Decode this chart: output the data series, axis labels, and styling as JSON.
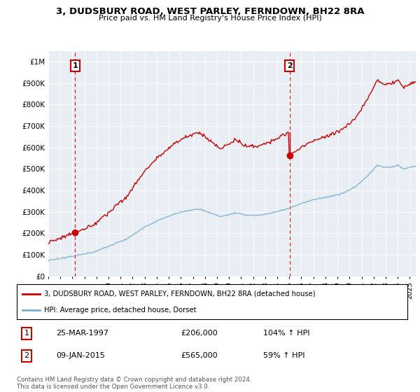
{
  "title": "3, DUDSBURY ROAD, WEST PARLEY, FERNDOWN, BH22 8RA",
  "subtitle": "Price paid vs. HM Land Registry's House Price Index (HPI)",
  "hpi_color": "#7bafd4",
  "price_color": "#cc0000",
  "annotation_color": "#cc0000",
  "plot_bg_color": "#e8eef4",
  "ylim": [
    0,
    1050000
  ],
  "yticks": [
    0,
    100000,
    200000,
    300000,
    400000,
    500000,
    600000,
    700000,
    800000,
    900000,
    1000000
  ],
  "ytick_labels": [
    "£0",
    "£100K",
    "£200K",
    "£300K",
    "£400K",
    "£500K",
    "£600K",
    "£700K",
    "£800K",
    "£900K",
    "£1M"
  ],
  "sale1": {
    "date_str": "25-MAR-1997",
    "year": 1997.22,
    "price": 206000,
    "label": "1"
  },
  "sale2": {
    "date_str": "09-JAN-2015",
    "year": 2015.03,
    "price": 565000,
    "label": "2"
  },
  "legend_line1": "3, DUDSBURY ROAD, WEST PARLEY, FERNDOWN, BH22 8RA (detached house)",
  "legend_line2": "HPI: Average price, detached house, Dorset",
  "table_row1": [
    "1",
    "25-MAR-1997",
    "£206,000",
    "104% ↑ HPI"
  ],
  "table_row2": [
    "2",
    "09-JAN-2015",
    "£565,000",
    "59% ↑ HPI"
  ],
  "footer": "Contains HM Land Registry data © Crown copyright and database right 2024.\nThis data is licensed under the Open Government Licence v3.0.",
  "xmin": 1995.0,
  "xmax": 2025.5
}
